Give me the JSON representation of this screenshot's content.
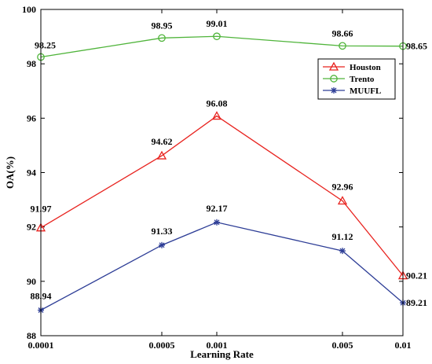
{
  "chart_data": {
    "type": "line",
    "xlabel": "Learning Rate",
    "ylabel": "OA(%)",
    "categories": [
      "0.0001",
      "0.0005",
      "0.001",
      "0.005",
      "0.01"
    ],
    "x": [
      0.0001,
      0.0005,
      0.001,
      0.005,
      0.01
    ],
    "ylim": [
      88,
      100
    ],
    "yticks": [
      "88",
      "90",
      "92",
      "94",
      "96",
      "98",
      "100"
    ],
    "grid": false,
    "legend_position": "upper right",
    "series": [
      {
        "name": "Houston",
        "color": "#e8231f",
        "marker": "triangle",
        "values": [
          91.97,
          94.62,
          96.08,
          92.96,
          90.21
        ],
        "labels": [
          "91.97",
          "94.62",
          "96.08",
          "92.96",
          "90.21"
        ]
      },
      {
        "name": "Trento",
        "color": "#4fb43a",
        "marker": "circle",
        "values": [
          98.25,
          98.95,
          99.01,
          98.66,
          98.65
        ],
        "labels": [
          "98.25",
          "98.95",
          "99.01",
          "98.66",
          "98.65"
        ]
      },
      {
        "name": "MUUFL",
        "color": "#2d3d96",
        "marker": "asterisk",
        "values": [
          88.94,
          91.33,
          92.17,
          91.12,
          89.21
        ],
        "labels": [
          "88.94",
          "91.33",
          "92.17",
          "91.12",
          "89.21"
        ]
      }
    ]
  }
}
